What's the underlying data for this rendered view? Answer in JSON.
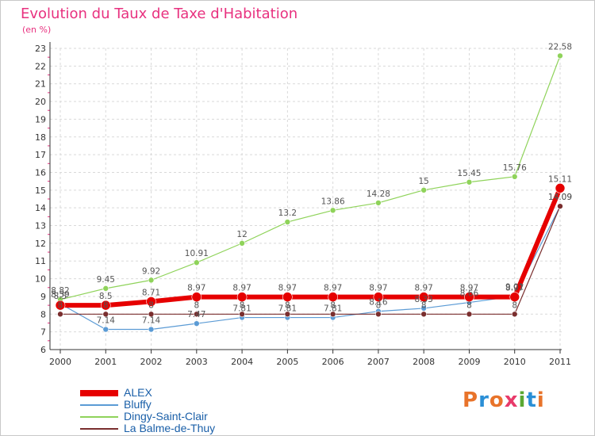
{
  "title": "Evolution du Taux de Taxe d'Habitation",
  "subtitle": "(en %)",
  "logo": {
    "text": "Proxiti",
    "letter_colors": [
      "#e8732a",
      "#2a8fd6",
      "#e8732a",
      "#e83a6a",
      "#5aa832",
      "#2a8fd6",
      "#e8732a"
    ]
  },
  "colors": {
    "title": "#e8317f",
    "axis": "#333333",
    "grid": "#d9d9d9",
    "tick_minor": "#e8317f",
    "label_text": "#555555"
  },
  "chart_data": {
    "type": "line",
    "title": "Evolution du Taux de Taxe d'Habitation",
    "ylabel": "(en %)",
    "xlabel": "",
    "x": [
      "2000",
      "2001",
      "2002",
      "2003",
      "2004",
      "2005",
      "2006",
      "2007",
      "2008",
      "2009",
      "2010",
      "2011"
    ],
    "ylim": [
      6,
      23
    ],
    "yticks": [
      6,
      7,
      8,
      9,
      10,
      11,
      12,
      13,
      14,
      15,
      16,
      17,
      18,
      19,
      20,
      21,
      22,
      23
    ],
    "grid": true,
    "legend_position": "bottom-left",
    "series": [
      {
        "name": "Dingy-Saint-Clair",
        "color": "#8fd35a",
        "stroke": 1.2,
        "marker": 3.5,
        "values": [
          8.82,
          9.45,
          9.92,
          10.91,
          12,
          13.2,
          13.86,
          14.28,
          15,
          15.45,
          15.76,
          22.58
        ],
        "labels": [
          "8.82",
          "9.45",
          "9.92",
          "10.91",
          "12",
          "13.2",
          "13.86",
          "14.28",
          "15",
          "15.45",
          "15.76",
          "22.58"
        ]
      },
      {
        "name": "Bluffy",
        "color": "#5b9bd5",
        "stroke": 1.2,
        "marker": 3.5,
        "values": [
          8.59,
          7.14,
          7.14,
          7.47,
          7.81,
          7.81,
          7.81,
          8.16,
          8.33,
          8.66,
          9.01,
          14.09
        ],
        "labels": [
          "8.59",
          "7.14",
          "7.14",
          "7.47",
          "7.81",
          "7.81",
          "7.81",
          "8.16",
          "8.33",
          "8.66",
          "9.01",
          "14.09"
        ]
      },
      {
        "name": "La Balme-de-Thuy",
        "color": "#7a2e2e",
        "stroke": 1.2,
        "marker": 3.5,
        "values": [
          8,
          8,
          8,
          8,
          8,
          8,
          8,
          8,
          8,
          8,
          8,
          14.09
        ],
        "labels": [
          "8",
          "8",
          "8",
          "8",
          "8",
          "8",
          "8",
          "8",
          "8",
          "8",
          "8",
          "14.09"
        ]
      },
      {
        "name": "ALEX",
        "color": "#e60000",
        "stroke": 6,
        "marker": 6,
        "values": [
          8.5,
          8.5,
          8.71,
          8.97,
          8.97,
          8.97,
          8.97,
          8.97,
          8.97,
          8.97,
          8.97,
          15.11
        ],
        "labels": [
          "8.5",
          "8.5",
          "8.71",
          "8.97",
          "8.97",
          "8.97",
          "8.97",
          "8.97",
          "8.97",
          "8.97",
          "8.97",
          "15.11"
        ]
      }
    ]
  },
  "legend": [
    {
      "name": "ALEX",
      "color": "#e60000",
      "thickness": 8
    },
    {
      "name": "Bluffy",
      "color": "#5b9bd5",
      "thickness": 2
    },
    {
      "name": "Dingy-Saint-Clair",
      "color": "#8fd35a",
      "thickness": 2
    },
    {
      "name": "La Balme-de-Thuy",
      "color": "#7a2e2e",
      "thickness": 2
    }
  ]
}
